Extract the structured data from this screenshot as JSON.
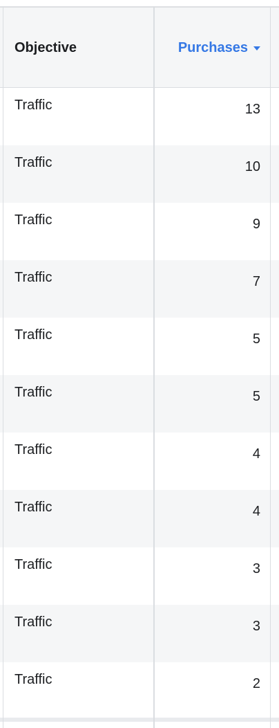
{
  "columns": {
    "objective": "Objective",
    "purchases": "Purchases"
  },
  "sort": {
    "column": "purchases",
    "direction": "descending",
    "icon": "sort-down-icon"
  },
  "rows": [
    {
      "objective": "Traffic",
      "purchases": "13"
    },
    {
      "objective": "Traffic",
      "purchases": "10"
    },
    {
      "objective": "Traffic",
      "purchases": "9"
    },
    {
      "objective": "Traffic",
      "purchases": "7"
    },
    {
      "objective": "Traffic",
      "purchases": "5"
    },
    {
      "objective": "Traffic",
      "purchases": "5"
    },
    {
      "objective": "Traffic",
      "purchases": "4"
    },
    {
      "objective": "Traffic",
      "purchases": "4"
    },
    {
      "objective": "Traffic",
      "purchases": "3"
    },
    {
      "objective": "Traffic",
      "purchases": "3"
    },
    {
      "objective": "Traffic",
      "purchases": "2"
    }
  ],
  "colors": {
    "accent": "#3578e5",
    "header_bg": "#f5f6f7",
    "alt_row_bg": "#f5f6f7",
    "divider": "#dadde1",
    "text": "#1c1e21"
  }
}
